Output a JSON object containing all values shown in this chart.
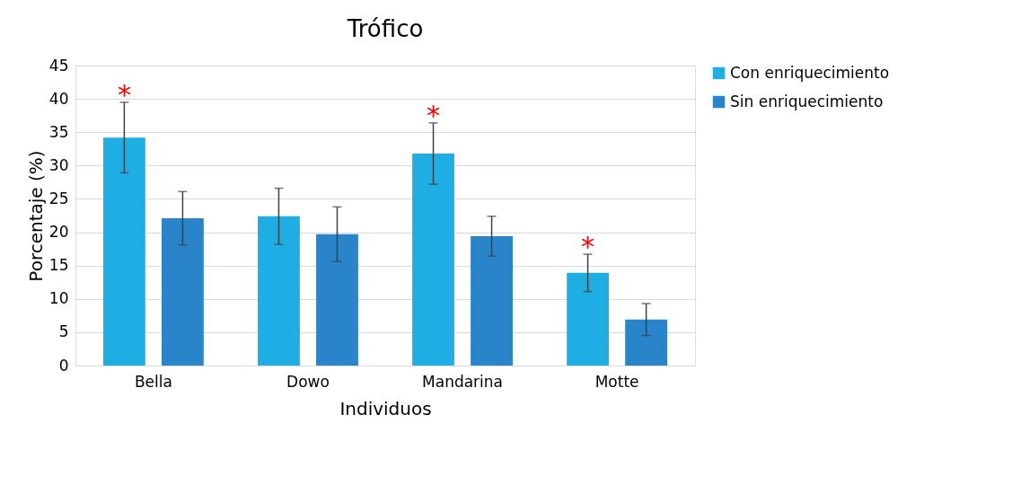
{
  "chart_data": {
    "type": "bar",
    "title": "Trófico",
    "xlabel": "Individuos",
    "ylabel": "Porcentaje (%)",
    "categories": [
      "Bella",
      "Dowo",
      "Mandarina",
      "Motte"
    ],
    "series": [
      {
        "name": "Con enriquecimiento",
        "color": "#1eaee3",
        "values": [
          34.2,
          22.4,
          31.8,
          13.9
        ],
        "errors": [
          5.3,
          4.2,
          4.6,
          2.8
        ],
        "value_labels": [
          "*",
          null,
          "*",
          "*"
        ]
      },
      {
        "name": "Sin enriquecimiento",
        "color": "#2a84c9",
        "values": [
          22.1,
          19.7,
          19.4,
          6.9
        ],
        "errors": [
          4.0,
          4.1,
          3.0,
          2.4
        ]
      }
    ],
    "ylim": [
      0,
      45
    ],
    "yticks": [
      0,
      5,
      10,
      15,
      20,
      25,
      30,
      35,
      40,
      45
    ],
    "grid": "y",
    "legend": "right"
  }
}
